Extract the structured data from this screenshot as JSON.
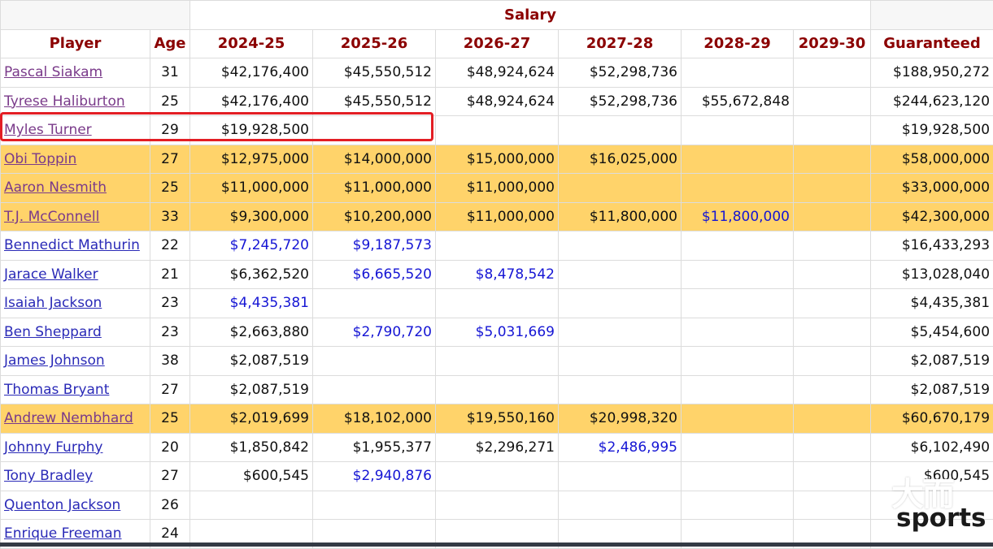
{
  "table": {
    "group_header": "Salary",
    "columns": [
      "Player",
      "Age",
      "2024-25",
      "2025-26",
      "2026-27",
      "2027-28",
      "2028-29",
      "2029-30",
      "Guaranteed"
    ],
    "rows": [
      {
        "player": "Pascal Siakam",
        "age": "31",
        "link": "visited",
        "highlight": false,
        "cells": [
          {
            "v": "$42,176,400"
          },
          {
            "v": "$45,550,512"
          },
          {
            "v": "$48,924,624"
          },
          {
            "v": "$52,298,736"
          },
          {
            "v": ""
          },
          {
            "v": ""
          }
        ],
        "guaranteed": "$188,950,272"
      },
      {
        "player": "Tyrese Haliburton",
        "age": "25",
        "link": "visited",
        "highlight": false,
        "cells": [
          {
            "v": "$42,176,400"
          },
          {
            "v": "$45,550,512"
          },
          {
            "v": "$48,924,624"
          },
          {
            "v": "$52,298,736"
          },
          {
            "v": "$55,672,848"
          },
          {
            "v": ""
          }
        ],
        "guaranteed": "$244,623,120"
      },
      {
        "player": "Myles Turner",
        "age": "29",
        "link": "visited",
        "highlight": false,
        "cells": [
          {
            "v": "$19,928,500"
          },
          {
            "v": ""
          },
          {
            "v": ""
          },
          {
            "v": ""
          },
          {
            "v": ""
          },
          {
            "v": ""
          }
        ],
        "guaranteed": "$19,928,500"
      },
      {
        "player": "Obi Toppin",
        "age": "27",
        "link": "visited",
        "highlight": true,
        "cells": [
          {
            "v": "$12,975,000"
          },
          {
            "v": "$14,000,000"
          },
          {
            "v": "$15,000,000"
          },
          {
            "v": "$16,025,000"
          },
          {
            "v": ""
          },
          {
            "v": ""
          }
        ],
        "guaranteed": "$58,000,000"
      },
      {
        "player": "Aaron Nesmith",
        "age": "25",
        "link": "visited",
        "highlight": true,
        "cells": [
          {
            "v": "$11,000,000"
          },
          {
            "v": "$11,000,000"
          },
          {
            "v": "$11,000,000"
          },
          {
            "v": ""
          },
          {
            "v": ""
          },
          {
            "v": ""
          }
        ],
        "guaranteed": "$33,000,000"
      },
      {
        "player": "T.J. McConnell",
        "age": "33",
        "link": "visited",
        "highlight": true,
        "cells": [
          {
            "v": "$9,300,000"
          },
          {
            "v": "$10,200,000"
          },
          {
            "v": "$11,000,000"
          },
          {
            "v": "$11,800,000"
          },
          {
            "v": "$11,800,000",
            "option": true
          },
          {
            "v": ""
          }
        ],
        "guaranteed": "$42,300,000"
      },
      {
        "player": "Bennedict Mathurin",
        "age": "22",
        "link": "normal",
        "highlight": false,
        "cells": [
          {
            "v": "$7,245,720",
            "option": true
          },
          {
            "v": "$9,187,573",
            "option": true
          },
          {
            "v": ""
          },
          {
            "v": ""
          },
          {
            "v": ""
          },
          {
            "v": ""
          }
        ],
        "guaranteed": "$16,433,293"
      },
      {
        "player": "Jarace Walker",
        "age": "21",
        "link": "normal",
        "highlight": false,
        "cells": [
          {
            "v": "$6,362,520"
          },
          {
            "v": "$6,665,520",
            "option": true
          },
          {
            "v": "$8,478,542",
            "option": true
          },
          {
            "v": ""
          },
          {
            "v": ""
          },
          {
            "v": ""
          }
        ],
        "guaranteed": "$13,028,040"
      },
      {
        "player": "Isaiah Jackson",
        "age": "23",
        "link": "normal",
        "highlight": false,
        "cells": [
          {
            "v": "$4,435,381",
            "option": true
          },
          {
            "v": ""
          },
          {
            "v": ""
          },
          {
            "v": ""
          },
          {
            "v": ""
          },
          {
            "v": ""
          }
        ],
        "guaranteed": "$4,435,381"
      },
      {
        "player": "Ben Sheppard",
        "age": "23",
        "link": "normal",
        "highlight": false,
        "cells": [
          {
            "v": "$2,663,880"
          },
          {
            "v": "$2,790,720",
            "option": true
          },
          {
            "v": "$5,031,669",
            "option": true
          },
          {
            "v": ""
          },
          {
            "v": ""
          },
          {
            "v": ""
          }
        ],
        "guaranteed": "$5,454,600"
      },
      {
        "player": "James Johnson",
        "age": "38",
        "link": "normal",
        "highlight": false,
        "cells": [
          {
            "v": "$2,087,519"
          },
          {
            "v": ""
          },
          {
            "v": ""
          },
          {
            "v": ""
          },
          {
            "v": ""
          },
          {
            "v": ""
          }
        ],
        "guaranteed": "$2,087,519"
      },
      {
        "player": "Thomas Bryant",
        "age": "27",
        "link": "normal",
        "highlight": false,
        "cells": [
          {
            "v": "$2,087,519"
          },
          {
            "v": ""
          },
          {
            "v": ""
          },
          {
            "v": ""
          },
          {
            "v": ""
          },
          {
            "v": ""
          }
        ],
        "guaranteed": "$2,087,519"
      },
      {
        "player": "Andrew Nembhard",
        "age": "25",
        "link": "visited",
        "highlight": true,
        "cells": [
          {
            "v": "$2,019,699"
          },
          {
            "v": "$18,102,000"
          },
          {
            "v": "$19,550,160"
          },
          {
            "v": "$20,998,320"
          },
          {
            "v": ""
          },
          {
            "v": ""
          }
        ],
        "guaranteed": "$60,670,179"
      },
      {
        "player": "Johnny Furphy",
        "age": "20",
        "link": "normal",
        "highlight": false,
        "cells": [
          {
            "v": "$1,850,842"
          },
          {
            "v": "$1,955,377"
          },
          {
            "v": "$2,296,271"
          },
          {
            "v": "$2,486,995",
            "option": true
          },
          {
            "v": ""
          },
          {
            "v": ""
          }
        ],
        "guaranteed": "$6,102,490"
      },
      {
        "player": "Tony Bradley",
        "age": "27",
        "link": "normal",
        "highlight": false,
        "cells": [
          {
            "v": "$600,545"
          },
          {
            "v": "$2,940,876",
            "option": true
          },
          {
            "v": ""
          },
          {
            "v": ""
          },
          {
            "v": ""
          },
          {
            "v": ""
          }
        ],
        "guaranteed": "$600,545"
      },
      {
        "player": "Quenton Jackson",
        "age": "26",
        "link": "normal",
        "highlight": false,
        "cells": [
          {
            "v": ""
          },
          {
            "v": ""
          },
          {
            "v": ""
          },
          {
            "v": ""
          },
          {
            "v": ""
          },
          {
            "v": ""
          }
        ],
        "guaranteed": ""
      },
      {
        "player": "Enrique Freeman",
        "age": "24",
        "link": "normal",
        "highlight": false,
        "cells": [
          {
            "v": ""
          },
          {
            "v": ""
          },
          {
            "v": ""
          },
          {
            "v": ""
          },
          {
            "v": ""
          },
          {
            "v": ""
          }
        ],
        "guaranteed": ""
      }
    ]
  },
  "watermark": {
    "cjk": "大而",
    "word": "sports"
  },
  "colors": {
    "header_text": "#8b0000",
    "highlight_row": "#ffd36a",
    "option_text": "#1515d4",
    "link": "#2a2ab7",
    "visited_link": "#7a3a8a",
    "annotation_box": "#e31e24"
  }
}
